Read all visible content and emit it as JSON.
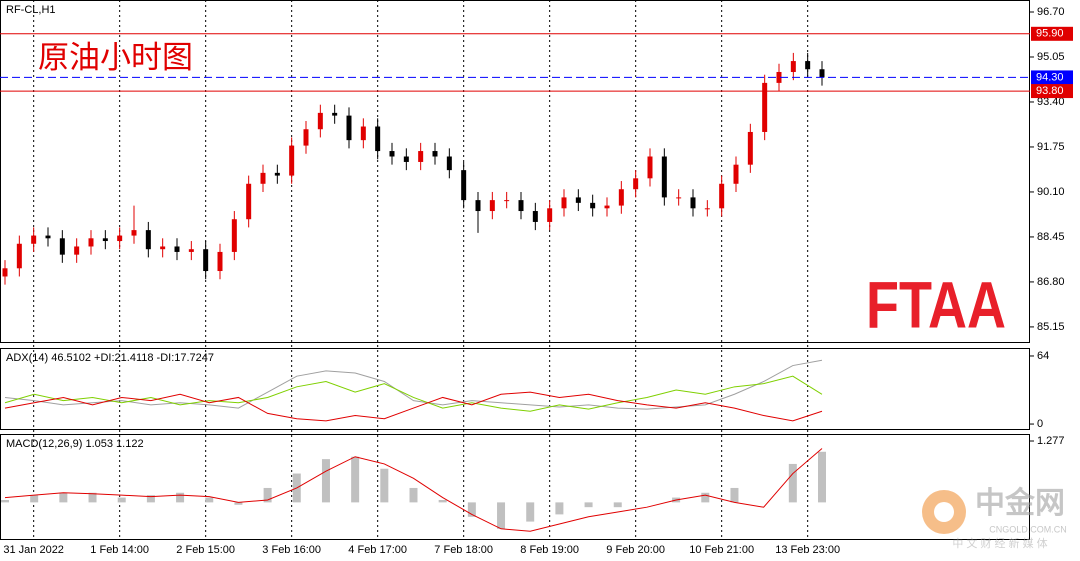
{
  "chart_data": [
    {
      "type": "candlestick",
      "title": "RF-CL,H1",
      "annotation": "原油小时图",
      "logo": "FTAA",
      "categories": [
        null,
        null,
        "31 Jan 2022",
        null,
        null,
        null,
        null,
        null,
        "1 Feb 14:00",
        null,
        null,
        null,
        null,
        null,
        "2 Feb 15:00",
        null,
        null,
        null,
        null,
        null,
        "3 Feb 16:00",
        null,
        null,
        null,
        null,
        null,
        "4 Feb 17:00",
        null,
        null,
        null,
        null,
        null,
        "7 Feb 18:00",
        null,
        null,
        null,
        null,
        null,
        "8 Feb 19:00",
        null,
        null,
        null,
        null,
        null,
        "9 Feb 20:00",
        null,
        null,
        null,
        null,
        null,
        "10 Feb 21:00",
        null,
        null,
        null,
        null,
        null,
        "13 Feb 23:00",
        null
      ],
      "open": [
        87.0,
        87.3,
        88.2,
        88.5,
        88.4,
        87.8,
        88.1,
        88.4,
        88.3,
        88.5,
        88.7,
        88.0,
        88.1,
        87.9,
        88.0,
        87.2,
        87.9,
        89.1,
        90.4,
        90.8,
        90.7,
        91.8,
        92.4,
        93.0,
        92.9,
        92.0,
        92.5,
        91.6,
        91.4,
        91.2,
        91.6,
        91.4,
        90.9,
        89.8,
        89.4,
        89.8,
        89.8,
        89.4,
        89.0,
        89.5,
        89.9,
        89.7,
        89.5,
        89.6,
        90.2,
        90.6,
        91.4,
        89.9,
        89.9,
        89.5,
        89.5,
        90.4,
        91.1,
        92.3,
        94.1,
        94.5,
        94.9,
        94.6
      ],
      "high": [
        87.6,
        88.5,
        88.8,
        88.8,
        88.7,
        88.4,
        88.7,
        88.7,
        88.8,
        89.6,
        89.0,
        88.4,
        88.4,
        88.3,
        88.3,
        88.2,
        89.4,
        90.7,
        91.1,
        91.1,
        92.1,
        92.7,
        93.3,
        93.3,
        93.2,
        92.8,
        92.8,
        91.9,
        91.7,
        91.9,
        91.9,
        91.7,
        91.2,
        90.1,
        90.1,
        90.1,
        90.1,
        89.7,
        89.8,
        90.2,
        90.2,
        90.0,
        89.9,
        90.5,
        90.9,
        91.7,
        91.7,
        90.2,
        90.2,
        89.8,
        90.7,
        91.4,
        92.6,
        94.4,
        94.8,
        95.2,
        95.2,
        94.9
      ],
      "low": [
        86.7,
        87.0,
        87.9,
        88.1,
        87.5,
        87.5,
        87.8,
        88.0,
        88.0,
        88.2,
        87.7,
        87.7,
        87.6,
        87.6,
        86.9,
        86.9,
        87.6,
        88.8,
        90.1,
        90.4,
        90.4,
        91.5,
        92.1,
        92.6,
        91.7,
        91.7,
        91.3,
        91.1,
        90.9,
        90.9,
        91.1,
        90.6,
        89.5,
        88.6,
        89.1,
        89.5,
        89.1,
        88.7,
        88.7,
        89.2,
        89.4,
        89.2,
        89.2,
        89.3,
        89.9,
        90.3,
        89.6,
        89.6,
        89.2,
        89.2,
        89.2,
        90.1,
        90.8,
        92.0,
        93.8,
        94.2,
        94.3,
        94.0
      ],
      "close": [
        87.3,
        88.2,
        88.5,
        88.4,
        87.8,
        88.1,
        88.4,
        88.3,
        88.5,
        88.7,
        88.0,
        88.1,
        87.9,
        88.0,
        87.2,
        87.9,
        89.1,
        90.4,
        90.8,
        90.7,
        91.8,
        92.4,
        93.0,
        92.9,
        92.0,
        92.5,
        91.6,
        91.4,
        91.2,
        91.6,
        91.4,
        90.9,
        89.8,
        89.4,
        89.8,
        89.8,
        89.4,
        89.0,
        89.5,
        89.9,
        89.7,
        89.5,
        89.6,
        90.2,
        90.6,
        91.4,
        89.9,
        89.9,
        89.5,
        89.5,
        90.4,
        91.1,
        92.3,
        94.1,
        94.5,
        94.9,
        94.6,
        94.3
      ],
      "up_color": "#e00000",
      "down_color": "#000000",
      "ylim": [
        84.56,
        97.14
      ],
      "yticks": [
        {
          "value": 96.7,
          "label": "96.70"
        },
        95.05,
        {
          "value": 93.4,
          "label": "93.40"
        },
        91.75,
        {
          "value": 90.1,
          "label": "90.10"
        },
        88.45,
        {
          "value": 86.8,
          "label": "86.80"
        },
        85.15
      ],
      "levels": [
        {
          "value": 95.9,
          "label": "95.90",
          "color": "#e00000"
        },
        {
          "value": 94.3,
          "label": "94.30",
          "color": "#0000ff",
          "dashed": true
        },
        {
          "value": 93.8,
          "label": "93.80",
          "color": "#e00000"
        }
      ]
    },
    {
      "type": "line",
      "title": "ADX(14) 46.5102 +DI:21.4118 -DI:17.7247",
      "series": [
        {
          "color": "#a0a0a0",
          "values": [
            25,
            22,
            18,
            20,
            22,
            18,
            20,
            18,
            15,
            30,
            45,
            50,
            48,
            40,
            22,
            18,
            22,
            20,
            18,
            16,
            18,
            15,
            14,
            16,
            18,
            28,
            40,
            55,
            60
          ]
        },
        {
          "color": "#7fd000",
          "values": [
            20,
            28,
            22,
            25,
            20,
            25,
            18,
            22,
            20,
            25,
            35,
            40,
            30,
            38,
            25,
            15,
            20,
            15,
            12,
            18,
            14,
            20,
            25,
            32,
            28,
            35,
            38,
            45,
            28
          ]
        },
        {
          "color": "#e00000",
          "values": [
            15,
            20,
            25,
            18,
            25,
            22,
            28,
            20,
            25,
            10,
            5,
            3,
            8,
            5,
            15,
            25,
            18,
            28,
            30,
            25,
            28,
            22,
            18,
            15,
            20,
            15,
            8,
            3,
            12
          ]
        }
      ],
      "ylim": [
        -5.6,
        71.5
      ],
      "yticks": [
        64,
        0
      ]
    },
    {
      "type": "combo",
      "title": "MACD(12,26,9) 1.053 1.122",
      "series": [
        {
          "type": "bar",
          "color": "#c0c0c0",
          "values": [
            0.05,
            0.15,
            0.2,
            0.2,
            0.1,
            0.15,
            0.2,
            0.1,
            -0.05,
            0.3,
            0.6,
            0.9,
            0.95,
            0.7,
            0.3,
            0.05,
            -0.3,
            -0.55,
            -0.4,
            -0.25,
            -0.1,
            -0.1,
            0.0,
            0.1,
            0.2,
            0.3,
            0.0,
            0.8,
            1.053
          ]
        },
        {
          "type": "line",
          "color": "#e00000",
          "values": [
            0.1,
            0.15,
            0.2,
            0.18,
            0.15,
            0.12,
            0.15,
            0.12,
            0.0,
            0.05,
            0.3,
            0.65,
            0.95,
            0.8,
            0.5,
            0.1,
            -0.25,
            -0.55,
            -0.6,
            -0.45,
            -0.3,
            -0.2,
            -0.1,
            0.05,
            0.15,
            0.0,
            -0.1,
            0.6,
            1.122
          ]
        }
      ],
      "ylim": [
        -0.783,
        1.423
      ],
      "yticks": [
        1.277
      ]
    }
  ],
  "watermark": {
    "name": "中金网",
    "site": "CNGOLD.COM.CN",
    "slogan": "中 文 财 经 新 媒 体"
  }
}
